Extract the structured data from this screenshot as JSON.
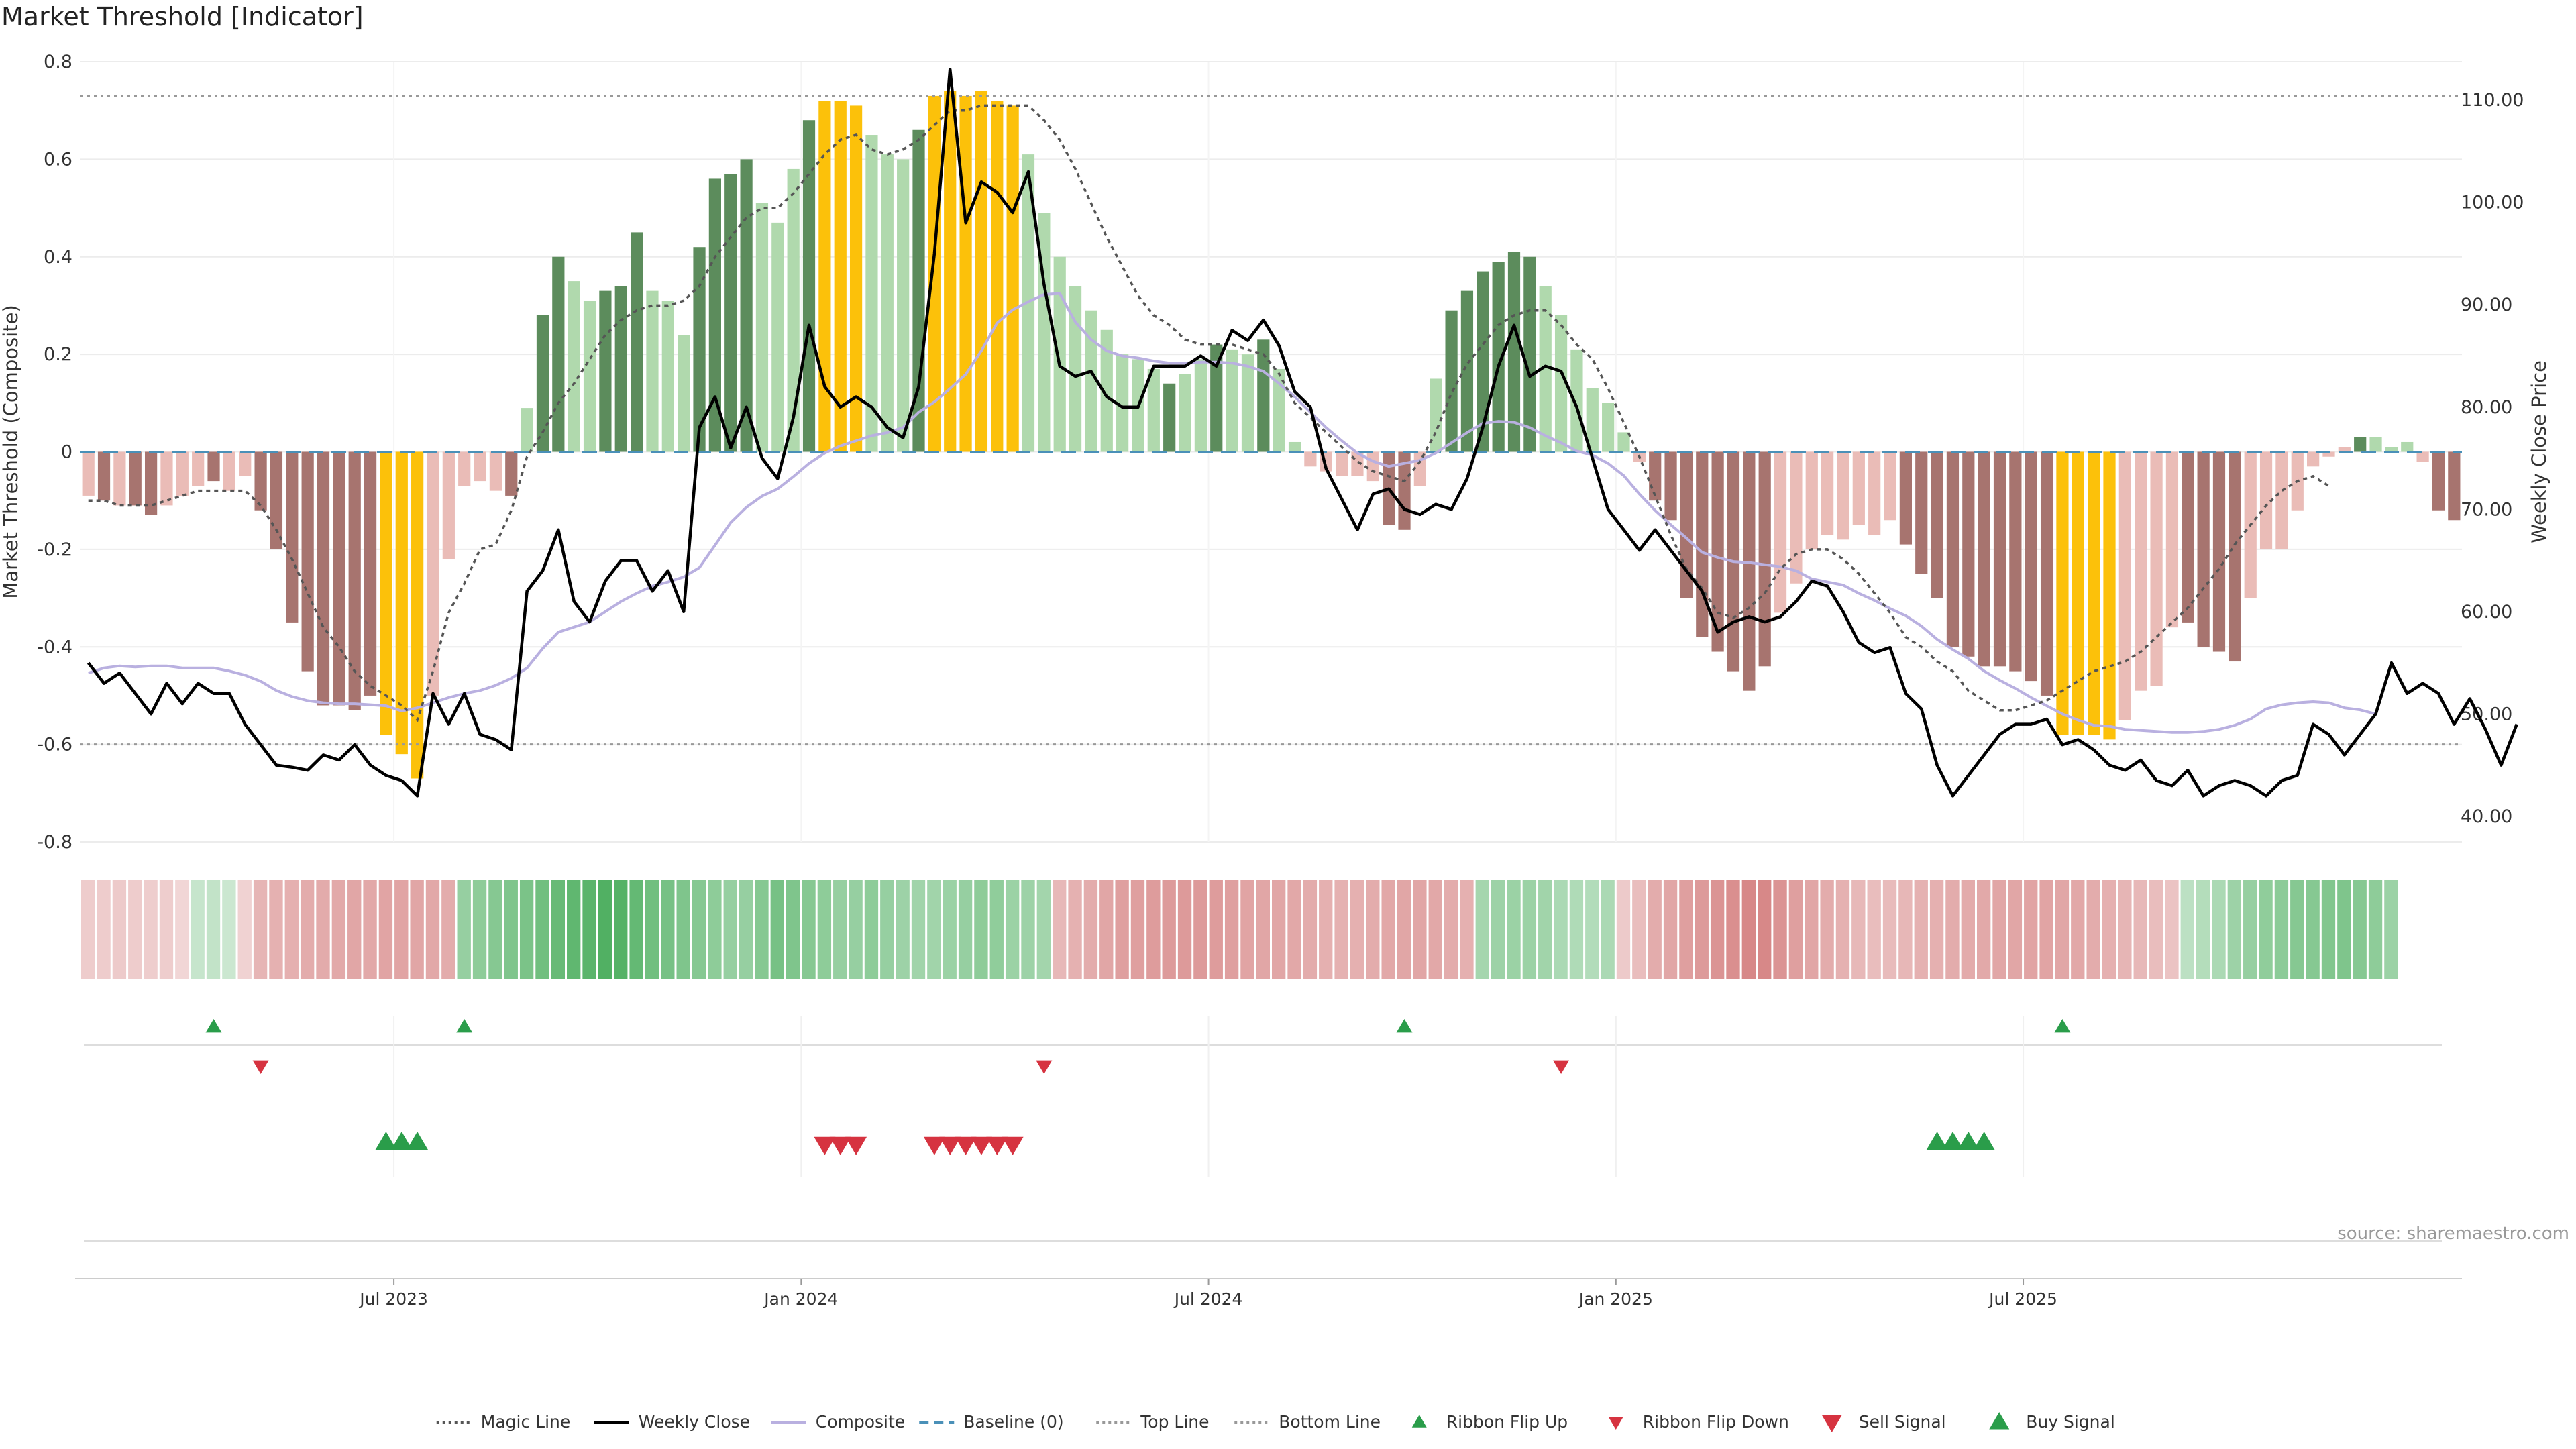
{
  "title": "Market Threshold [Indicator]",
  "source": "source: sharemaestro.com",
  "colors": {
    "dark_green": "#5c8c5c",
    "light_green": "#b0d9ad",
    "dark_red": "#a7746f",
    "light_red": "#eabcb7",
    "extreme_yellow": "#fcc10a",
    "weekly_close": "#000000",
    "composite": "#b9b0e0",
    "magic_line": "#555555",
    "baseline": "#4a90b8",
    "threshold_lines": "#999999",
    "buy": "#2a9d4a",
    "sell": "#d63340"
  },
  "chart_data": {
    "type": "bar",
    "title": "Market Threshold [Indicator]",
    "ylabel": "Market Threshold (Composite)",
    "y2label": "Weekly Close Price",
    "ylim": [
      -0.8,
      0.8
    ],
    "y2lim": [
      37.5,
      113.75
    ],
    "yticks": [
      "0.8",
      "0.6",
      "0.4",
      "0.2",
      "0",
      "-0.2",
      "-0.4",
      "-0.6",
      "-0.8"
    ],
    "y2ticks": [
      "110.00",
      "100.00",
      "90.00",
      "80.00",
      "70.00",
      "60.00",
      "50.00",
      "40.00"
    ],
    "x_ticks": [
      "Jul 2023",
      "Jan 2024",
      "Jul 2024",
      "Jan 2025",
      "Jul 2025"
    ],
    "x_tick_weeks": [
      20,
      46,
      72,
      98,
      124
    ],
    "top_line": 0.73,
    "bottom_line": -0.6,
    "bar_values": [
      -0.09,
      -0.1,
      -0.11,
      -0.11,
      -0.13,
      -0.11,
      -0.09,
      -0.07,
      -0.06,
      -0.08,
      -0.05,
      -0.12,
      -0.2,
      -0.35,
      -0.45,
      -0.52,
      -0.52,
      -0.53,
      -0.5,
      -0.58,
      -0.62,
      -0.67,
      -0.5,
      -0.22,
      -0.07,
      -0.06,
      -0.08,
      -0.09,
      0.09,
      0.28,
      0.4,
      0.35,
      0.31,
      0.33,
      0.34,
      0.45,
      0.33,
      0.31,
      0.24,
      0.42,
      0.56,
      0.57,
      0.6,
      0.51,
      0.47,
      0.58,
      0.68,
      0.72,
      0.72,
      0.71,
      0.65,
      0.61,
      0.6,
      0.66,
      0.73,
      0.74,
      0.73,
      0.74,
      0.72,
      0.71,
      0.61,
      0.49,
      0.4,
      0.34,
      0.29,
      0.25,
      0.2,
      0.19,
      0.17,
      0.14,
      0.16,
      0.19,
      0.22,
      0.21,
      0.2,
      0.23,
      0.17,
      0.02,
      -0.03,
      -0.04,
      -0.05,
      -0.05,
      -0.06,
      -0.15,
      -0.16,
      -0.07,
      0.15,
      0.29,
      0.33,
      0.37,
      0.39,
      0.41,
      0.4,
      0.34,
      0.28,
      0.21,
      0.13,
      0.1,
      0.04,
      -0.02,
      -0.1,
      -0.14,
      -0.3,
      -0.38,
      -0.41,
      -0.45,
      -0.49,
      -0.44,
      -0.33,
      -0.27,
      -0.2,
      -0.17,
      -0.18,
      -0.15,
      -0.17,
      -0.14,
      -0.19,
      -0.25,
      -0.3,
      -0.4,
      -0.42,
      -0.44,
      -0.44,
      -0.45,
      -0.47,
      -0.5,
      -0.58,
      -0.58,
      -0.58,
      -0.59,
      -0.55,
      -0.49,
      -0.48,
      -0.36,
      -0.35,
      -0.4,
      -0.41,
      -0.43,
      -0.3,
      -0.2,
      -0.2,
      -0.12,
      -0.03,
      -0.01,
      0.01,
      0.03,
      0.03,
      0.01,
      0.02,
      -0.02,
      -0.12,
      -0.14
    ],
    "bar_classes": [
      "lr",
      "dr",
      "lr",
      "dr",
      "dr",
      "lr",
      "lr",
      "lr",
      "dr",
      "lr",
      "lr",
      "dr",
      "dr",
      "dr",
      "dr",
      "dr",
      "dr",
      "dr",
      "dr",
      "ye",
      "ye",
      "ye",
      "lr",
      "lr",
      "lr",
      "lr",
      "lr",
      "dr",
      "lg",
      "dg",
      "dg",
      "lg",
      "lg",
      "dg",
      "dg",
      "dg",
      "lg",
      "lg",
      "lg",
      "dg",
      "dg",
      "dg",
      "dg",
      "lg",
      "lg",
      "lg",
      "dg",
      "ye",
      "ye",
      "ye",
      "lg",
      "lg",
      "lg",
      "dg",
      "ye",
      "ye",
      "ye",
      "ye",
      "ye",
      "ye",
      "lg",
      "lg",
      "lg",
      "lg",
      "lg",
      "lg",
      "lg",
      "lg",
      "lg",
      "dg",
      "lg",
      "lg",
      "dg",
      "lg",
      "lg",
      "dg",
      "lg",
      "lg",
      "lr",
      "lr",
      "lr",
      "lr",
      "lr",
      "dr",
      "dr",
      "lr",
      "lg",
      "dg",
      "dg",
      "dg",
      "dg",
      "dg",
      "dg",
      "lg",
      "lg",
      "lg",
      "lg",
      "lg",
      "lg",
      "lr",
      "dr",
      "dr",
      "dr",
      "dr",
      "dr",
      "dr",
      "dr",
      "dr",
      "lr",
      "lr",
      "lr",
      "lr",
      "lr",
      "lr",
      "lr",
      "lr",
      "dr",
      "dr",
      "dr",
      "dr",
      "dr",
      "dr",
      "dr",
      "dr",
      "dr",
      "dr",
      "ye",
      "ye",
      "ye",
      "ye",
      "lr",
      "lr",
      "lr",
      "lr",
      "dr",
      "dr",
      "dr",
      "dr",
      "lr",
      "lr",
      "lr",
      "lr",
      "lr",
      "lr",
      "lr",
      "dg",
      "lg",
      "lg",
      "lg",
      "lr",
      "dr",
      "dr"
    ],
    "series": [
      {
        "name": "Weekly Close",
        "values": [
          55.0,
          53.0,
          54.0,
          52.0,
          50.0,
          53.0,
          51.0,
          53.0,
          52.0,
          52.0,
          49.0,
          47.0,
          45.0,
          44.8,
          44.5,
          46.0,
          45.5,
          47.0,
          45.0,
          44.0,
          43.5,
          42.0,
          52.0,
          49.0,
          52.0,
          48.0,
          47.5,
          46.5,
          62.0,
          64.0,
          68.0,
          61.0,
          59.0,
          63.0,
          65.0,
          65.0,
          62.0,
          64.0,
          60.0,
          78.0,
          81.0,
          76.0,
          80.0,
          75.0,
          73.0,
          79.0,
          88.0,
          82.0,
          80.0,
          81.0,
          80.0,
          78.0,
          77.0,
          82.0,
          95.0,
          113.0,
          98.0,
          102.0,
          101.0,
          99.0,
          103.0,
          92.0,
          84.0,
          83.0,
          83.5,
          81.0,
          80.0,
          80.0,
          84.0,
          84.0,
          84.0,
          85.0,
          84.0,
          87.5,
          86.5,
          88.5,
          86.0,
          81.5,
          80.0,
          74.0,
          71.0,
          68.0,
          71.5,
          72.0,
          70.0,
          69.5,
          70.5,
          70.0,
          73.0,
          78.0,
          84.0,
          88.0,
          83.0,
          84.0,
          83.5,
          80.0,
          75.0,
          70.0,
          68.0,
          66.0,
          68.0,
          66.0,
          64.0,
          62.0,
          58.0,
          59.0,
          59.5,
          59.0,
          59.5,
          61.0,
          63.0,
          62.5,
          60.0,
          57.0,
          56.0,
          56.5,
          52.0,
          50.5,
          45.0,
          42.0,
          44.0,
          46.0,
          48.0,
          49.0,
          49.0,
          49.5,
          47.0,
          47.5,
          46.5,
          45.0,
          44.5,
          45.5,
          43.5,
          43.0,
          44.5,
          42.0,
          43.0,
          43.5,
          43.0,
          42.0,
          43.5,
          44.0,
          49.0,
          48.0,
          46.0,
          48.0,
          50.0,
          55.0,
          52.0,
          53.0,
          52.0,
          49.0,
          51.5,
          48.5,
          45.0,
          49.0
        ]
      },
      {
        "name": "Composite",
        "values": [
          54.0,
          54.5,
          54.7,
          54.6,
          54.7,
          54.7,
          54.5,
          54.5,
          54.5,
          54.2,
          53.8,
          53.2,
          52.3,
          51.7,
          51.3,
          51.1,
          51.0,
          51.0,
          50.9,
          50.8,
          50.3,
          50.6,
          51.1,
          51.6,
          52.0,
          52.3,
          52.8,
          53.5,
          54.5,
          56.4,
          58.0,
          58.5,
          59.0,
          60.0,
          61.0,
          61.8,
          62.5,
          62.9,
          63.4,
          64.3,
          66.5,
          68.7,
          70.2,
          71.3,
          72.0,
          73.2,
          74.5,
          75.5,
          76.2,
          76.7,
          77.2,
          77.5,
          78.0,
          79.5,
          80.5,
          81.8,
          83.2,
          85.5,
          88.2,
          89.5,
          90.3,
          91.0,
          91.1,
          88.3,
          86.6,
          85.5,
          85.0,
          84.8,
          84.5,
          84.3,
          84.3,
          84.4,
          84.4,
          84.3,
          84.0,
          83.5,
          82.3,
          81.0,
          79.5,
          78.0,
          76.7,
          75.5,
          74.7,
          74.2,
          74.5,
          74.8,
          75.5,
          76.5,
          77.5,
          78.4,
          78.6,
          78.5,
          78.0,
          77.2,
          76.5,
          75.7,
          75.3,
          74.5,
          73.3,
          71.5,
          69.9,
          68.5,
          67.2,
          65.8,
          65.3,
          64.9,
          64.8,
          64.6,
          64.4,
          64.0,
          63.2,
          62.9,
          62.6,
          61.8,
          61.1,
          60.3,
          59.6,
          58.6,
          57.3,
          56.3,
          55.4,
          54.2,
          53.3,
          52.5,
          51.6,
          50.8,
          50.0,
          49.4,
          48.9,
          48.8,
          48.5,
          48.4,
          48.3,
          48.2,
          48.2,
          48.3,
          48.5,
          48.9,
          49.5,
          50.5,
          50.9,
          51.1,
          51.2,
          51.1,
          50.6,
          50.4,
          50.0
        ]
      },
      {
        "name": "Magic Line",
        "values": [
          -0.1,
          -0.1,
          -0.11,
          -0.11,
          -0.11,
          -0.1,
          -0.09,
          -0.08,
          -0.08,
          -0.08,
          -0.08,
          -0.11,
          -0.16,
          -0.22,
          -0.29,
          -0.36,
          -0.4,
          -0.45,
          -0.48,
          -0.5,
          -0.52,
          -0.55,
          -0.45,
          -0.33,
          -0.27,
          -0.2,
          -0.19,
          -0.12,
          -0.01,
          0.04,
          0.1,
          0.14,
          0.19,
          0.24,
          0.27,
          0.29,
          0.3,
          0.3,
          0.31,
          0.34,
          0.4,
          0.44,
          0.48,
          0.5,
          0.5,
          0.53,
          0.57,
          0.61,
          0.64,
          0.65,
          0.62,
          0.61,
          0.62,
          0.64,
          0.67,
          0.7,
          0.7,
          0.71,
          0.71,
          0.71,
          0.71,
          0.68,
          0.64,
          0.58,
          0.51,
          0.44,
          0.38,
          0.32,
          0.28,
          0.26,
          0.23,
          0.22,
          0.22,
          0.22,
          0.21,
          0.2,
          0.16,
          0.1,
          0.07,
          0.04,
          0.01,
          -0.02,
          -0.04,
          -0.05,
          -0.06,
          -0.02,
          0.04,
          0.12,
          0.18,
          0.22,
          0.26,
          0.28,
          0.29,
          0.29,
          0.26,
          0.22,
          0.19,
          0.13,
          0.06,
          -0.01,
          -0.09,
          -0.17,
          -0.24,
          -0.28,
          -0.33,
          -0.34,
          -0.32,
          -0.29,
          -0.24,
          -0.21,
          -0.2,
          -0.2,
          -0.22,
          -0.25,
          -0.29,
          -0.33,
          -0.38,
          -0.4,
          -0.43,
          -0.45,
          -0.49,
          -0.51,
          -0.53,
          -0.53,
          -0.52,
          -0.51,
          -0.49,
          -0.47,
          -0.45,
          -0.44,
          -0.43,
          -0.41,
          -0.38,
          -0.35,
          -0.32,
          -0.28,
          -0.24,
          -0.19,
          -0.15,
          -0.11,
          -0.08,
          -0.06,
          -0.05,
          -0.07
        ]
      },
      {
        "name": "Baseline (0)",
        "values": [
          0
        ]
      },
      {
        "name": "Top Line",
        "values": [
          0.73
        ]
      },
      {
        "name": "Bottom Line",
        "values": [
          -0.6
        ]
      }
    ],
    "ribbon_values": [
      -0.18,
      -0.18,
      -0.19,
      -0.18,
      -0.17,
      -0.17,
      -0.1,
      0.12,
      0.15,
      0.1,
      -0.12,
      -0.38,
      -0.4,
      -0.42,
      -0.45,
      -0.46,
      -0.47,
      -0.5,
      -0.48,
      -0.52,
      -0.52,
      -0.5,
      -0.48,
      -0.45,
      0.45,
      0.5,
      0.55,
      0.6,
      0.62,
      0.7,
      0.75,
      0.8,
      0.85,
      0.9,
      0.88,
      0.78,
      0.7,
      0.65,
      0.6,
      0.55,
      0.5,
      0.45,
      0.45,
      0.55,
      0.65,
      0.6,
      0.55,
      0.5,
      0.45,
      0.45,
      0.5,
      0.45,
      0.4,
      0.38,
      0.38,
      0.42,
      0.45,
      0.5,
      0.48,
      0.42,
      0.4,
      0.36,
      -0.35,
      -0.4,
      -0.45,
      -0.5,
      -0.55,
      -0.55,
      -0.58,
      -0.6,
      -0.6,
      -0.6,
      -0.58,
      -0.55,
      -0.52,
      -0.5,
      -0.5,
      -0.48,
      -0.45,
      -0.42,
      -0.4,
      -0.42,
      -0.45,
      -0.48,
      -0.5,
      -0.5,
      -0.48,
      -0.45,
      -0.42,
      0.35,
      0.4,
      0.42,
      0.42,
      0.38,
      0.3,
      0.28,
      0.26,
      0.3,
      -0.2,
      -0.3,
      -0.45,
      -0.5,
      -0.55,
      -0.6,
      -0.65,
      -0.7,
      -0.75,
      -0.75,
      -0.65,
      -0.55,
      -0.5,
      -0.45,
      -0.4,
      -0.35,
      -0.3,
      -0.32,
      -0.36,
      -0.4,
      -0.42,
      -0.45,
      -0.46,
      -0.47,
      -0.5,
      -0.5,
      -0.52,
      -0.52,
      -0.5,
      -0.48,
      -0.45,
      -0.42,
      -0.38,
      -0.35,
      -0.3,
      -0.25,
      0.2,
      0.25,
      0.3,
      0.4,
      0.45,
      0.48,
      0.52,
      0.55,
      0.56,
      0.58,
      0.6,
      0.55,
      0.5,
      0.42
    ],
    "ribbon_flip_up_weeks": [
      8,
      24,
      84,
      126
    ],
    "ribbon_flip_down_weeks": [
      11,
      61,
      94
    ],
    "buy_signal_weeks": [
      19,
      20,
      21,
      118,
      119,
      120,
      121
    ],
    "sell_signal_weeks": [
      47,
      48,
      49,
      54,
      55,
      56,
      57,
      58,
      59
    ],
    "legend": [
      {
        "label": "Magic Line",
        "kind": "dotted",
        "color": "#555555"
      },
      {
        "label": "Weekly Close",
        "kind": "solid",
        "color": "#000000"
      },
      {
        "label": "Composite",
        "kind": "solid",
        "color": "#b9b0e0"
      },
      {
        "label": "Baseline (0)",
        "kind": "dashed",
        "color": "#4a90b8"
      },
      {
        "label": "Top Line",
        "kind": "dotted",
        "color": "#999999"
      },
      {
        "label": "Bottom Line",
        "kind": "dotted",
        "color": "#999999"
      },
      {
        "label": "Ribbon Flip Up",
        "kind": "tri-up-small",
        "color": "#2a9d4a"
      },
      {
        "label": "Ribbon Flip Down",
        "kind": "tri-down-small",
        "color": "#d63340"
      },
      {
        "label": "Sell Signal",
        "kind": "tri-down",
        "color": "#d63340"
      },
      {
        "label": "Buy Signal",
        "kind": "tri-up",
        "color": "#2a9d4a"
      }
    ],
    "legend_position": "bottom-center",
    "grid": true
  }
}
